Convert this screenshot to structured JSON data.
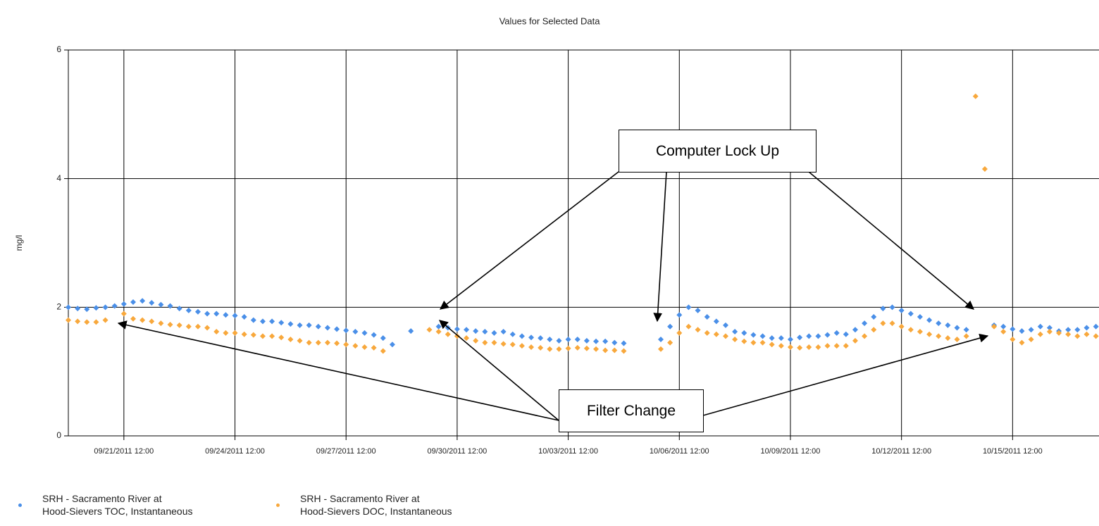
{
  "chart_data": {
    "type": "scatter",
    "title": "Values for Selected Data",
    "y_label": "mg/l",
    "xlim": [
      "09/20/2011 00:00",
      "10/17/2011 20:00"
    ],
    "xticks": [
      "09/21/2011 12:00",
      "09/24/2011 12:00",
      "09/27/2011 12:00",
      "09/30/2011 12:00",
      "10/03/2011 12:00",
      "10/06/2011 12:00",
      "10/09/2011 12:00",
      "10/12/2011 12:00",
      "10/15/2011 12:00"
    ],
    "ylim": [
      0,
      6
    ],
    "yticks": [
      0,
      2,
      4,
      6
    ],
    "grid": true,
    "annotations": [
      {
        "text": "Computer Lock Up"
      },
      {
        "text": "Filter Change"
      }
    ],
    "x": [
      "09/20/2011 00:00",
      "09/20/2011 06:00",
      "09/20/2011 12:00",
      "09/20/2011 18:00",
      "09/21/2011 00:00",
      "09/21/2011 06:00",
      "09/21/2011 12:00",
      "09/21/2011 18:00",
      "09/22/2011 00:00",
      "09/22/2011 06:00",
      "09/22/2011 12:00",
      "09/22/2011 18:00",
      "09/23/2011 00:00",
      "09/23/2011 06:00",
      "09/23/2011 12:00",
      "09/23/2011 18:00",
      "09/24/2011 00:00",
      "09/24/2011 06:00",
      "09/24/2011 12:00",
      "09/24/2011 18:00",
      "09/25/2011 00:00",
      "09/25/2011 06:00",
      "09/25/2011 12:00",
      "09/25/2011 18:00",
      "09/26/2011 00:00",
      "09/26/2011 06:00",
      "09/26/2011 12:00",
      "09/26/2011 18:00",
      "09/27/2011 00:00",
      "09/27/2011 06:00",
      "09/27/2011 12:00",
      "09/27/2011 18:00",
      "09/28/2011 00:00",
      "09/28/2011 06:00",
      "09/28/2011 12:00",
      "09/28/2011 18:00",
      "09/29/2011 00:00",
      "09/29/2011 06:00",
      "09/29/2011 12:00",
      "09/29/2011 18:00",
      "09/30/2011 00:00",
      "09/30/2011 06:00",
      "09/30/2011 12:00",
      "09/30/2011 18:00",
      "10/01/2011 00:00",
      "10/01/2011 06:00",
      "10/01/2011 12:00",
      "10/01/2011 18:00",
      "10/02/2011 00:00",
      "10/02/2011 06:00",
      "10/02/2011 12:00",
      "10/02/2011 18:00",
      "10/03/2011 00:00",
      "10/03/2011 06:00",
      "10/03/2011 12:00",
      "10/03/2011 18:00",
      "10/04/2011 00:00",
      "10/04/2011 06:00",
      "10/04/2011 12:00",
      "10/04/2011 18:00",
      "10/05/2011 00:00",
      "10/05/2011 06:00",
      "10/05/2011 12:00",
      "10/05/2011 18:00",
      "10/06/2011 00:00",
      "10/06/2011 06:00",
      "10/06/2011 12:00",
      "10/06/2011 18:00",
      "10/07/2011 00:00",
      "10/07/2011 06:00",
      "10/07/2011 12:00",
      "10/07/2011 18:00",
      "10/08/2011 00:00",
      "10/08/2011 06:00",
      "10/08/2011 12:00",
      "10/08/2011 18:00",
      "10/09/2011 00:00",
      "10/09/2011 06:00",
      "10/09/2011 12:00",
      "10/09/2011 18:00",
      "10/10/2011 00:00",
      "10/10/2011 06:00",
      "10/10/2011 12:00",
      "10/10/2011 18:00",
      "10/11/2011 00:00",
      "10/11/2011 06:00",
      "10/11/2011 12:00",
      "10/11/2011 18:00",
      "10/12/2011 00:00",
      "10/12/2011 06:00",
      "10/12/2011 12:00",
      "10/12/2011 18:00",
      "10/13/2011 00:00",
      "10/13/2011 06:00",
      "10/13/2011 12:00",
      "10/13/2011 18:00",
      "10/14/2011 00:00",
      "10/14/2011 06:00",
      "10/14/2011 12:00",
      "10/14/2011 18:00",
      "10/15/2011 00:00",
      "10/15/2011 06:00",
      "10/15/2011 12:00",
      "10/15/2011 18:00",
      "10/16/2011 00:00",
      "10/16/2011 06:00",
      "10/16/2011 12:00",
      "10/16/2011 18:00",
      "10/17/2011 00:00",
      "10/17/2011 06:00",
      "10/17/2011 12:00",
      "10/17/2011 18:00"
    ],
    "series": [
      {
        "name": "SRH - Sacramento River at\nHood-Sievers TOC, Instantaneous",
        "color": "#4a8fe8",
        "values": [
          2.0,
          1.98,
          1.97,
          1.99,
          2.0,
          2.02,
          2.05,
          2.08,
          2.1,
          2.07,
          2.04,
          2.02,
          1.98,
          1.95,
          1.93,
          1.9,
          1.9,
          1.88,
          1.87,
          1.85,
          1.8,
          1.78,
          1.78,
          1.76,
          1.74,
          1.72,
          1.72,
          1.7,
          1.68,
          1.66,
          1.64,
          1.62,
          1.6,
          1.57,
          1.52,
          1.42,
          null,
          1.63,
          null,
          null,
          1.7,
          1.68,
          1.66,
          1.65,
          1.63,
          1.62,
          1.6,
          1.62,
          1.58,
          1.55,
          1.53,
          1.52,
          1.5,
          1.48,
          1.5,
          1.5,
          1.48,
          1.47,
          1.47,
          1.45,
          1.44,
          null,
          null,
          null,
          1.5,
          1.7,
          1.88,
          2.0,
          1.95,
          1.85,
          1.78,
          1.72,
          1.62,
          1.6,
          1.57,
          1.55,
          1.52,
          1.52,
          1.5,
          1.53,
          1.55,
          1.55,
          1.57,
          1.6,
          1.58,
          1.65,
          1.75,
          1.85,
          1.98,
          2.0,
          1.95,
          1.9,
          1.85,
          1.8,
          1.75,
          1.72,
          1.68,
          1.65,
          null,
          null,
          1.72,
          1.7,
          1.66,
          1.63,
          1.65,
          1.7,
          1.68,
          1.63,
          1.65,
          1.65,
          1.68,
          1.7
        ]
      },
      {
        "name": "SRH - Sacramento River at\nHood-Sievers DOC, Instantaneous",
        "color": "#f8a83c",
        "values": [
          1.8,
          1.78,
          1.77,
          1.77,
          1.8,
          null,
          1.9,
          1.82,
          1.8,
          1.78,
          1.75,
          1.73,
          1.72,
          1.7,
          1.7,
          1.68,
          1.62,
          1.6,
          1.6,
          1.58,
          1.57,
          1.55,
          1.55,
          1.53,
          1.5,
          1.48,
          1.45,
          1.45,
          1.45,
          1.44,
          1.42,
          1.4,
          1.38,
          1.37,
          1.32,
          null,
          null,
          null,
          null,
          1.65,
          1.62,
          1.58,
          1.55,
          1.52,
          1.48,
          1.45,
          1.45,
          1.43,
          1.42,
          1.4,
          1.38,
          1.37,
          1.35,
          1.35,
          1.36,
          1.37,
          1.36,
          1.35,
          1.33,
          1.33,
          1.32,
          null,
          null,
          null,
          1.35,
          1.45,
          1.6,
          1.7,
          1.65,
          1.6,
          1.58,
          1.55,
          1.5,
          1.47,
          1.45,
          1.45,
          1.42,
          1.4,
          1.38,
          1.37,
          1.38,
          1.38,
          1.4,
          1.4,
          1.4,
          1.48,
          1.55,
          1.65,
          1.75,
          1.75,
          1.7,
          1.65,
          1.62,
          1.58,
          1.55,
          1.52,
          1.5,
          1.55,
          5.28,
          4.15,
          1.7,
          1.62,
          1.5,
          1.45,
          1.5,
          1.58,
          1.62,
          1.6,
          1.58,
          1.55,
          1.58,
          1.55
        ]
      }
    ]
  }
}
